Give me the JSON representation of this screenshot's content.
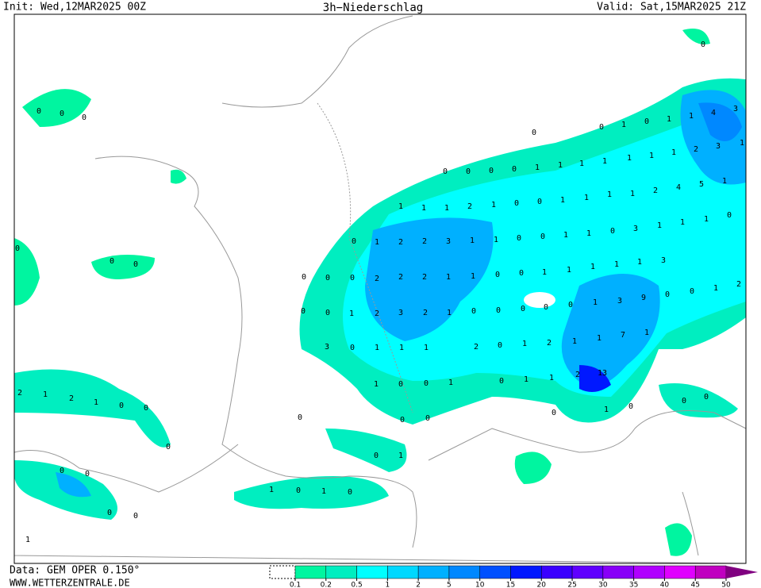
{
  "header": {
    "init": "Init: Wed,12MAR2025 00Z",
    "title": "3h−Niederschlag",
    "valid": "Valid: Sat,15MAR2025 21Z"
  },
  "footer": {
    "data": "Data: GEM OPER 0.150°",
    "site": "WWW.WETTERZENTRALE.DE"
  },
  "colorbar": {
    "ticks": [
      0.1,
      0.2,
      0.5,
      1,
      2,
      5,
      10,
      15,
      20,
      25,
      30,
      35,
      40,
      45,
      50
    ],
    "colors": [
      "#00f5a0",
      "#00eec0",
      "#00ffff",
      "#00d8ff",
      "#00b0ff",
      "#0088ff",
      "#0050ff",
      "#0018ff",
      "#3a00ff",
      "#6000ff",
      "#8800f8",
      "#b000ff",
      "#e000ff",
      "#c000c0"
    ],
    "arrow_color": "#800080"
  },
  "map": {
    "labels": [
      0,
      0,
      0,
      0,
      0,
      0,
      2,
      1,
      2,
      1,
      0,
      0,
      0,
      0,
      0,
      0,
      0,
      1,
      0,
      0,
      0,
      1,
      0,
      1,
      1,
      4,
      3,
      1,
      3,
      2,
      1,
      1,
      1,
      1,
      1,
      1,
      1,
      0,
      0,
      0,
      0,
      1,
      5,
      4,
      2,
      1,
      1,
      1,
      1,
      0,
      0,
      1,
      2,
      1,
      1,
      1,
      0,
      1,
      1,
      1,
      3,
      0,
      1,
      1,
      0,
      0,
      1,
      1,
      3,
      2,
      2,
      1,
      0,
      3,
      1,
      1,
      1,
      1,
      1,
      0,
      0,
      1,
      1,
      2,
      2,
      2,
      0,
      0,
      0,
      2,
      1,
      0,
      0,
      9,
      3,
      1,
      0,
      0,
      0,
      0,
      0,
      1,
      2,
      3,
      2,
      1,
      0,
      0,
      1,
      7,
      1,
      1,
      2,
      1,
      0,
      2,
      1,
      1,
      1,
      0,
      3,
      13,
      2,
      1,
      1,
      0,
      1,
      0,
      0,
      1,
      0,
      0,
      0,
      1,
      0,
      0,
      0,
      0,
      0,
      1,
      1,
      0,
      1,
      0
    ]
  }
}
